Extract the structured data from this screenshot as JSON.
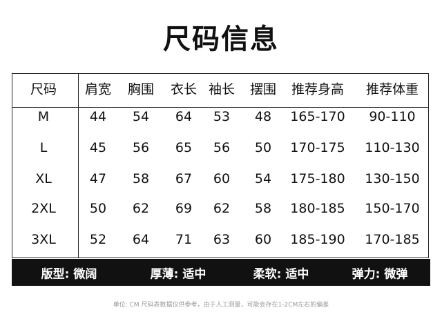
{
  "title": "尺码信息",
  "table": {
    "headers": [
      "尺码",
      "肩宽",
      "胸围",
      "衣长",
      "袖长",
      "摆围",
      "推荐身高",
      "推荐体重"
    ],
    "rows": [
      [
        "M",
        "44",
        "54",
        "64",
        "53",
        "48",
        "165-170",
        "90-110"
      ],
      [
        "L",
        "45",
        "56",
        "65",
        "56",
        "50",
        "170-175",
        "110-130"
      ],
      [
        "XL",
        "47",
        "58",
        "67",
        "60",
        "54",
        "175-180",
        "130-150"
      ],
      [
        "2XL",
        "50",
        "62",
        "69",
        "62",
        "58",
        "180-185",
        "150-170"
      ],
      [
        "3XL",
        "52",
        "64",
        "71",
        "63",
        "60",
        "185-190",
        "170-185"
      ]
    ]
  },
  "attributes": [
    "版型: 微阔",
    "厚薄: 适中",
    "柔软: 适中",
    "弹力: 微弹"
  ],
  "note": "单位: CM    尺码表数据仅供参考，由于人工测量，可能会存在1-2CM左右的偏差"
}
